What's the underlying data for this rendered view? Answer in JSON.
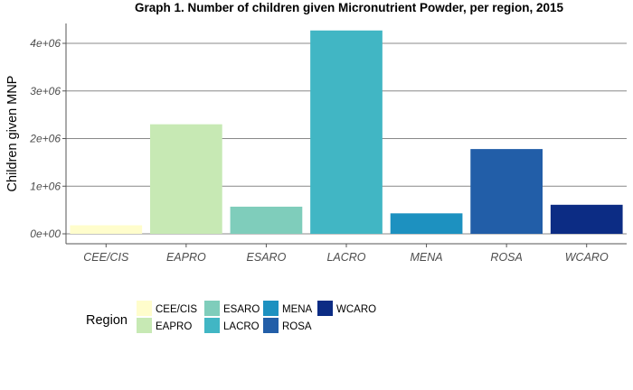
{
  "chart_data": {
    "type": "bar",
    "title": "Graph 1. Number of children given Micronutrient Powder, per region, 2015",
    "xlabel": "",
    "ylabel": "Children given MNP",
    "categories": [
      "CEE/CIS",
      "EAPRO",
      "ESARO",
      "LACRO",
      "MENA",
      "ROSA",
      "WCARO"
    ],
    "values": [
      180000,
      2300000,
      570000,
      4270000,
      430000,
      1780000,
      610000
    ],
    "colors": [
      "#fffdcc",
      "#c7e9b4",
      "#7fcdbb",
      "#41b6c4",
      "#1d91c0",
      "#225ea8",
      "#0c2c84"
    ],
    "ylim": [
      0,
      4300000
    ],
    "yticks": [
      0,
      1000000,
      2000000,
      3000000,
      4000000
    ],
    "ytick_labels": [
      "0e+00",
      "1e+06",
      "2e+06",
      "3e+06",
      "4e+06"
    ],
    "grid": "horizontal",
    "legend": {
      "title": "Region",
      "placement": "bottom-left",
      "entries": [
        "CEE/CIS",
        "EAPRO",
        "ESARO",
        "LACRO",
        "MENA",
        "ROSA",
        "WCARO"
      ]
    }
  }
}
